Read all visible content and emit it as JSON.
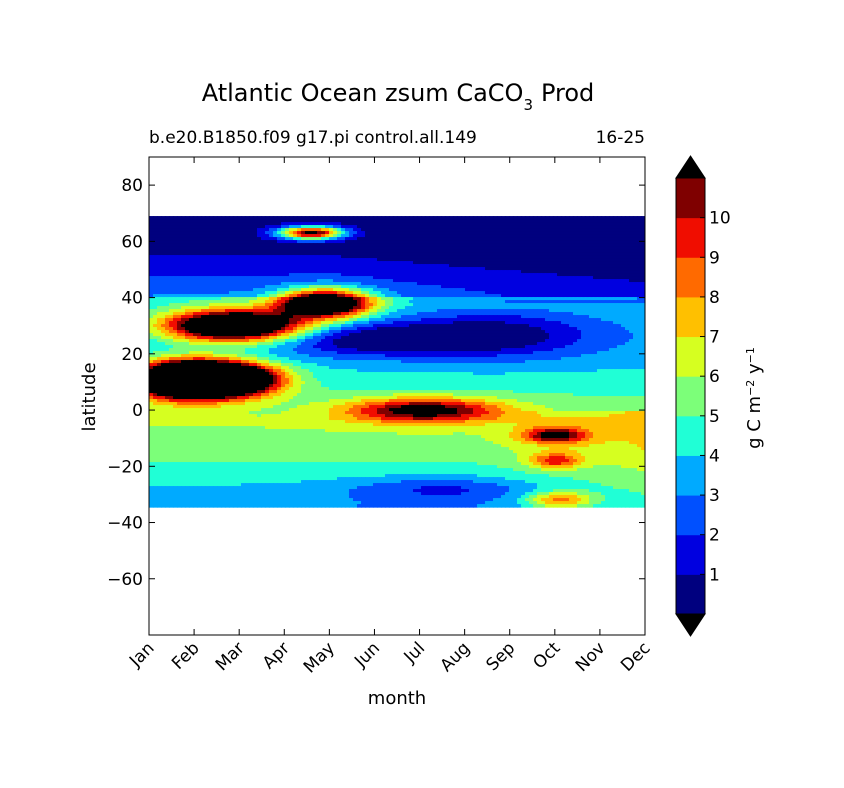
{
  "chart_data": {
    "type": "heatmap",
    "title": "Atlantic Ocean zsum CaCO",
    "title_subscript": "3",
    "title_suffix": "Prod",
    "subtitle_left": "b.e20.B1850.f09 g17.pi control.all.149",
    "subtitle_right": "16-25",
    "xlabel": "month",
    "ylabel": "latitude",
    "x_categories": [
      "Jan",
      "Feb",
      "Mar",
      "Apr",
      "May",
      "Jun",
      "Jul",
      "Aug",
      "Sep",
      "Oct",
      "Nov",
      "Dec"
    ],
    "ylim": [
      -80,
      90
    ],
    "yticks": [
      80,
      60,
      40,
      20,
      0,
      -20,
      -40,
      -60
    ],
    "ytick_labels": [
      "80",
      "60",
      "40",
      "20",
      "0",
      "−20",
      "−40",
      "−60"
    ],
    "data_lat_range": [
      -34,
      69
    ],
    "colorbar": {
      "label": "g C m",
      "label_exp1": "−2",
      "label_mid": " y",
      "label_exp2": "−1",
      "levels": [
        0,
        1,
        2,
        3,
        4,
        5,
        6,
        7,
        8,
        9,
        10,
        11
      ],
      "tick_labels": [
        "1",
        "2",
        "3",
        "4",
        "5",
        "6",
        "7",
        "8",
        "9",
        "10"
      ],
      "colors": [
        "#00007f",
        "#0000e0",
        "#0050ff",
        "#00aaff",
        "#20ffd6",
        "#7cff79",
        "#d6ff20",
        "#ffc000",
        "#ff6a00",
        "#f00d00",
        "#7f0000"
      ],
      "over_color": "#000000",
      "under_color": "#000000"
    },
    "features": [
      {
        "month": 1.8,
        "lat": 11,
        "value": 15,
        "sx": 0.8,
        "sy": 4.5
      },
      {
        "month": 2.8,
        "lat": 11,
        "value": 12,
        "sx": 0.8,
        "sy": 4
      },
      {
        "month": 2.9,
        "lat": 30,
        "value": 13,
        "sx": 1.1,
        "sy": 4
      },
      {
        "month": 4.9,
        "lat": 38,
        "value": 12,
        "sx": 0.7,
        "sy": 3.5
      },
      {
        "month": 4.6,
        "lat": 63,
        "value": 11,
        "sx": 0.5,
        "sy": 1.6
      },
      {
        "month": 7.1,
        "lat": 0,
        "value": 6.5,
        "sx": 1.2,
        "sy": 3
      },
      {
        "month": 10.0,
        "lat": -9,
        "value": 5.5,
        "sx": 0.5,
        "sy": 2
      },
      {
        "month": 10.0,
        "lat": -18,
        "value": 4,
        "sx": 0.4,
        "sy": 2
      },
      {
        "month": 10.1,
        "lat": -32,
        "value": 4.5,
        "sx": 0.5,
        "sy": 2
      },
      {
        "month": 6.0,
        "lat": 25,
        "value": -3.5,
        "sx": 1.6,
        "sy": 4
      },
      {
        "month": 8.7,
        "lat": 27,
        "value": -3,
        "sx": 1.5,
        "sy": 6
      },
      {
        "month": 7.5,
        "lat": -28,
        "value": -2,
        "sx": 1.5,
        "sy": 3
      }
    ]
  }
}
